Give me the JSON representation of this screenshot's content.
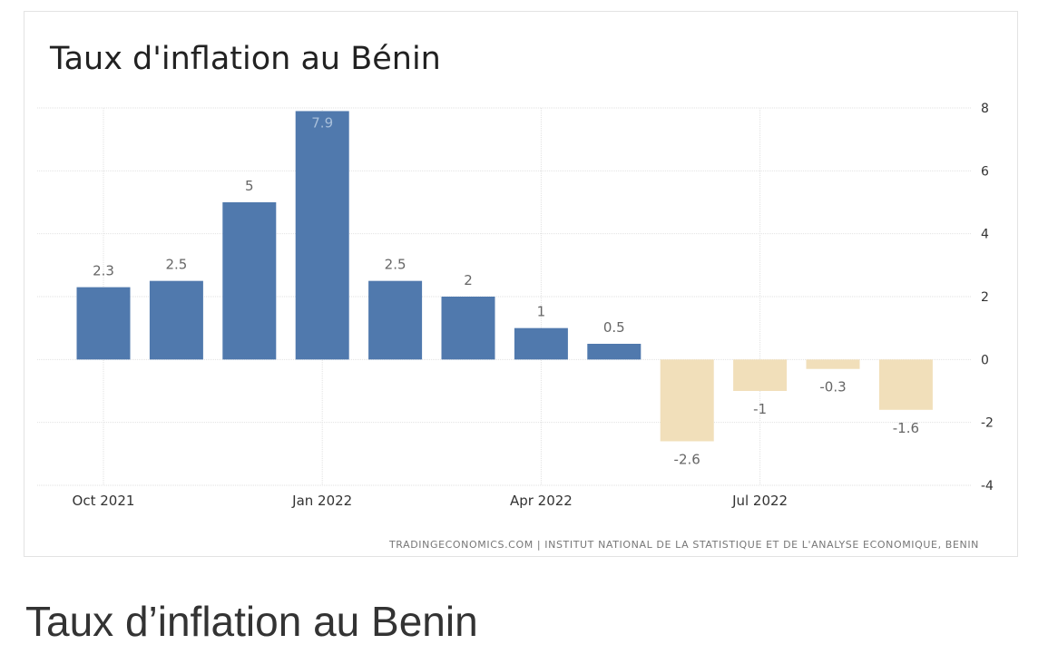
{
  "chart_data": {
    "type": "bar",
    "title": "Taux d'inflation au Bénin",
    "categories": [
      "Oct 2021",
      "Nov 2021",
      "Dec 2021",
      "Jan 2022",
      "Feb 2022",
      "Mar 2022",
      "Apr 2022",
      "May 2022",
      "Jun 2022",
      "Jul 2022",
      "Aug 2022",
      "Sep 2022"
    ],
    "values": [
      2.3,
      2.5,
      5,
      7.9,
      2.5,
      2,
      1,
      0.5,
      -2.6,
      -1,
      -0.3,
      -1.6
    ],
    "value_labels": [
      "2.3",
      "2.5",
      "5",
      "7.9",
      "2.5",
      "2",
      "1",
      "0.5",
      "-2.6",
      "-1",
      "-0.3",
      "-1.6"
    ],
    "x_tick_labels": [
      "Oct 2021",
      "Jan 2022",
      "Apr 2022",
      "Jul 2022"
    ],
    "y_ticks": [
      8,
      6,
      4,
      2,
      0,
      -2,
      -4
    ],
    "ylim": [
      -4,
      8
    ],
    "y_axis_side": "right",
    "grid": true,
    "colors": {
      "positive": "#5079ad",
      "negative": "#f1dfba",
      "label": "#666666",
      "axis_text": "#333333"
    },
    "source": "TRADINGECONOMICS.COM | INSTITUT NATIONAL DE LA STATISTIQUE ET DE L'ANALYSE ECONOMIQUE, BENIN"
  },
  "caption": "Taux d’inflation au Benin"
}
